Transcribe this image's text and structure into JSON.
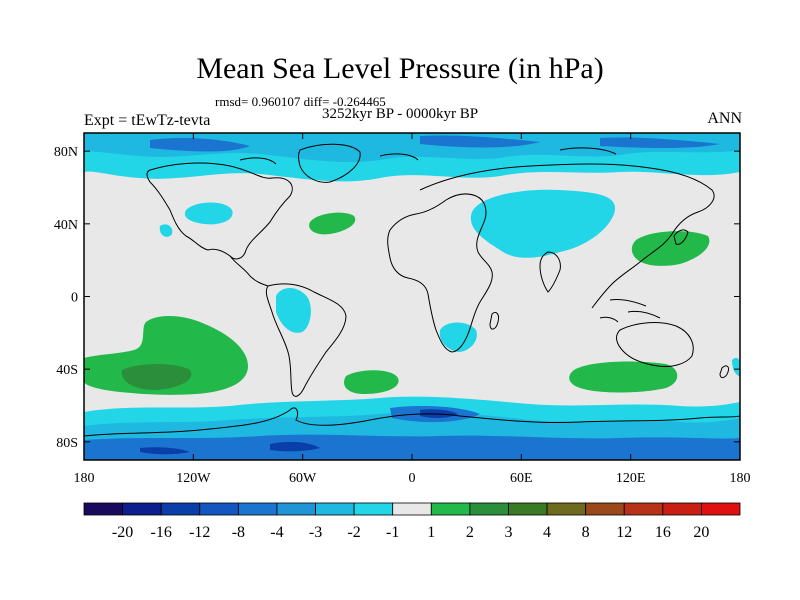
{
  "title": "Mean Sea Level Pressure (in hPa)",
  "stats": "rmsd= 0.960107 diff= -0.264465",
  "period": "3252kyr BP - 0000kyr BP",
  "experiment": "Expt = tEwTz-tevta",
  "season": "ANN",
  "lon_ticks": [
    "180",
    "120W",
    "60W",
    "0",
    "60E",
    "120E",
    "180"
  ],
  "lat_ticks": [
    "80N",
    "40N",
    "0",
    "40S",
    "80S"
  ],
  "colorbar": {
    "labels": [
      "-20",
      "-16",
      "-12",
      "-8",
      "-4",
      "-3",
      "-2",
      "-1",
      "1",
      "2",
      "3",
      "4",
      "8",
      "12",
      "16",
      "20"
    ],
    "colors": [
      "#1a0a5e",
      "#0d1f8c",
      "#0a3ea8",
      "#1456c0",
      "#1a74d0",
      "#1f95d8",
      "#1fb8e0",
      "#22d6e8",
      "#e8e8e8",
      "#22b84a",
      "#2a8e3a",
      "#3a7a24",
      "#6e6a1e",
      "#9a4a1a",
      "#b8321a",
      "#c81e14",
      "#e01010"
    ]
  },
  "colors": {
    "land_ocean_neutral": "#e8e8e8",
    "strong_neg": "#1a74d0",
    "mid_neg": "#1fb8e0",
    "weak_neg": "#22d6e8",
    "weak_pos": "#2bb84a",
    "mid_pos": "#2a8e3a"
  }
}
